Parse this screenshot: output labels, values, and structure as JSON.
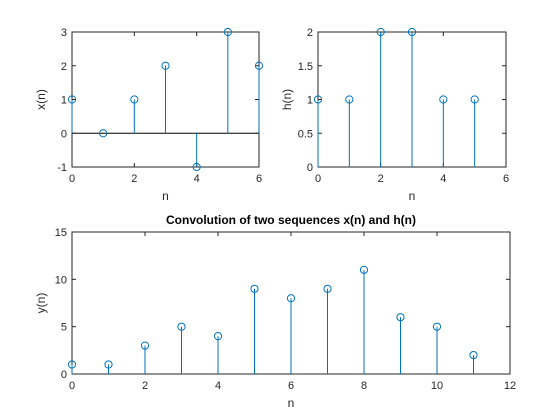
{
  "chart_data": [
    {
      "type": "stem",
      "title": "",
      "xlabel": "n",
      "ylabel": "x(n)",
      "xlim": [
        0,
        6
      ],
      "ylim": [
        -1,
        3
      ],
      "xticks": [
        "0",
        "2",
        "4",
        "6"
      ],
      "yticks": [
        "-1",
        "0",
        "1",
        "2",
        "3"
      ],
      "baseline": 0,
      "grid": false,
      "series": [
        {
          "x": [
            0,
            1,
            2,
            3,
            4,
            5,
            6
          ],
          "y": [
            1,
            0,
            1,
            2,
            -1,
            3,
            2
          ]
        }
      ]
    },
    {
      "type": "stem",
      "title": "",
      "xlabel": "n",
      "ylabel": "h(n)",
      "xlim": [
        0,
        6
      ],
      "ylim": [
        0,
        2
      ],
      "xticks": [
        "0",
        "2",
        "4",
        "6"
      ],
      "yticks": [
        "0",
        "0.5",
        "1",
        "1.5",
        "2"
      ],
      "baseline": 0,
      "grid": false,
      "series": [
        {
          "x": [
            0,
            1,
            2,
            3,
            4,
            5
          ],
          "y": [
            1,
            1,
            2,
            2,
            1,
            1
          ]
        }
      ]
    },
    {
      "type": "stem",
      "title": "Convolution of two sequences x(n) and h(n)",
      "xlabel": "n",
      "ylabel": "y(n)",
      "xlim": [
        0,
        12
      ],
      "ylim": [
        0,
        15
      ],
      "xticks": [
        "0",
        "2",
        "4",
        "6",
        "8",
        "10",
        "12"
      ],
      "yticks": [
        "0",
        "5",
        "10",
        "15"
      ],
      "baseline": 0,
      "grid": false,
      "series": [
        {
          "x": [
            0,
            1,
            2,
            3,
            4,
            5,
            6,
            7,
            8,
            9,
            10,
            11
          ],
          "y": [
            1,
            1,
            3,
            5,
            4,
            9,
            8,
            9,
            11,
            6,
            5,
            2
          ]
        }
      ]
    }
  ],
  "colors": {
    "stem": "#0072BD",
    "axes": "#262626",
    "background": "#ffffff"
  }
}
